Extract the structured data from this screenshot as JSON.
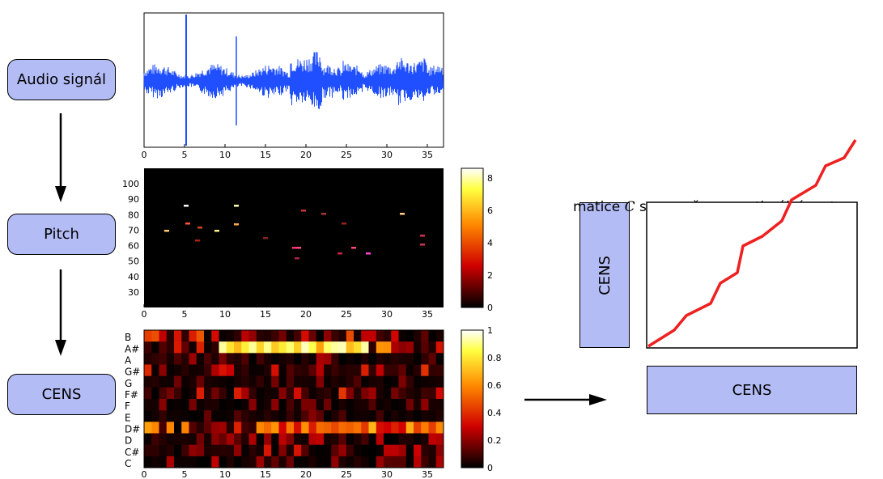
{
  "flow": {
    "audio_label": "Audio signál",
    "pitch_label": "Pitch",
    "cens_label": "CENS"
  },
  "matrix": {
    "title_prefix": "matice ",
    "title_var": "C",
    "title_suffix": " s vyznačenou optimální cestou",
    "left_label": "CENS",
    "bottom_label": "CENS",
    "path_color": "#ee2020"
  },
  "waveform": {
    "color": "#1f4fff",
    "x_ticks": [
      "0",
      "5",
      "10",
      "15",
      "20",
      "25",
      "30",
      "35"
    ]
  },
  "pitch_plot": {
    "x_ticks": [
      "0",
      "5",
      "10",
      "15",
      "20",
      "25",
      "30",
      "35"
    ],
    "y_ticks": [
      "30",
      "40",
      "50",
      "60",
      "70",
      "80",
      "90",
      "100"
    ],
    "colorbar_ticks": [
      "0",
      "2",
      "4",
      "6",
      "8"
    ]
  },
  "cens_plot": {
    "x_ticks": [
      "0",
      "5",
      "10",
      "15",
      "20",
      "25",
      "30",
      "35"
    ],
    "chroma_labels": [
      "B",
      "A#",
      "A",
      "G#",
      "G",
      "F#",
      "F",
      "E",
      "D#",
      "D",
      "C#",
      "C"
    ],
    "colorbar_ticks": [
      "0",
      "0.2",
      "0.4",
      "0.6",
      "0.8",
      "1"
    ]
  }
}
